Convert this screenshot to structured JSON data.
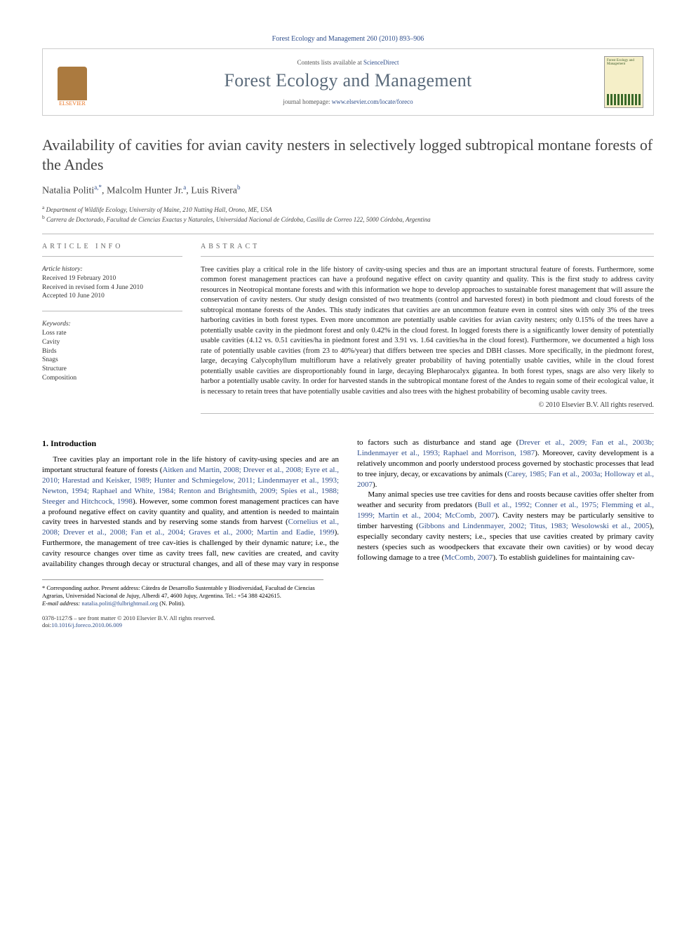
{
  "header": {
    "citation": "Forest Ecology and Management 260 (2010) 893–906"
  },
  "banner": {
    "publisher": "ELSEVIER",
    "contents_prefix": "Contents lists available at ",
    "contents_link": "ScienceDirect",
    "journal": "Forest Ecology and Management",
    "homepage_prefix": "journal homepage: ",
    "homepage_url": "www.elsevier.com/locate/foreco",
    "cover_title": "Forest Ecology and Management"
  },
  "title": "Availability of cavities for avian cavity nesters in selectively logged subtropical montane forests of the Andes",
  "authors": {
    "list": "Natalia Politi",
    "a1_sup": "a,",
    "star": "*",
    "a2": ", Malcolm Hunter Jr.",
    "a2_sup": "a",
    "a3": ", Luis Rivera",
    "a3_sup": "b"
  },
  "affiliations": {
    "a": "Department of Wildlife Ecology, University of Maine, 210 Nutting Hall, Orono, ME, USA",
    "b": "Carrera de Doctorado, Facultad de Ciencias Exactas y Naturales, Universidad Nacional de Córdoba, Casilla de Correo 122, 5000 Córdoba, Argentina"
  },
  "info": {
    "label": "ARTICLE INFO",
    "history_head": "Article history:",
    "h1": "Received 19 February 2010",
    "h2": "Received in revised form 4 June 2010",
    "h3": "Accepted 10 June 2010",
    "keywords_head": "Keywords:",
    "k1": "Loss rate",
    "k2": "Cavity",
    "k3": "Birds",
    "k4": "Snags",
    "k5": "Structure",
    "k6": "Composition"
  },
  "abstract": {
    "label": "ABSTRACT",
    "text": "Tree cavities play a critical role in the life history of cavity-using species and thus are an important structural feature of forests. Furthermore, some common forest management practices can have a profound negative effect on cavity quantity and quality. This is the first study to address cavity resources in Neotropical montane forests and with this information we hope to develop approaches to sustainable forest management that will assure the conservation of cavity nesters. Our study design consisted of two treatments (control and harvested forest) in both piedmont and cloud forests of the subtropical montane forests of the Andes. This study indicates that cavities are an uncommon feature even in control sites with only 3% of the trees harboring cavities in both forest types. Even more uncommon are potentially usable cavities for avian cavity nesters; only 0.15% of the trees have a potentially usable cavity in the piedmont forest and only 0.42% in the cloud forest. In logged forests there is a significantly lower density of potentially usable cavities (4.12 vs. 0.51 cavities/ha in piedmont forest and 3.91 vs. 1.64 cavities/ha in the cloud forest). Furthermore, we documented a high loss rate of potentially usable cavities (from 23 to 40%/year) that differs between tree species and DBH classes. More specifically, in the piedmont forest, large, decaying Calycophyllum multiflorum have a relatively greater probability of having potentially usable cavities, while in the cloud forest potentially usable cavities are disproportionably found in large, decaying Blepharocalyx gigantea. In both forest types, snags are also very likely to harbor a potentially usable cavity. In order for harvested stands in the subtropical montane forest of the Andes to regain some of their ecological value, it is necessary to retain trees that have potentially usable cavities and also trees with the highest probability of becoming usable cavity trees.",
    "copyright": "© 2010 Elsevier B.V. All rights reserved."
  },
  "body": {
    "h1": "1. Introduction",
    "p1a": "Tree cavities play an important role in the life history of cavity-using species and are an important structural feature of forests (",
    "p1_refs1": "Aitken and Martin, 2008; Drever et al., 2008; Eyre et al., 2010; Harestad and Keisker, 1989; Hunter and Schmiegelow, 2011; Lindenmayer et al., 1993; Newton, 1994; Raphael and White, 1984; Renton and Brightsmith, 2009; Spies et al., 1988; Steeger and Hitchcock, 1998",
    "p1b": "). However, some common forest management practices can have a profound negative effect on cavity quantity and quality, and attention is needed to maintain cavity trees in harvested stands and by reserving some stands from harvest (",
    "p1_refs2": "Cornelius et al., 2008; Drever et al., 2008; Fan et al., 2004; Graves et al., 2000; Martin and Eadie, 1999",
    "p1c": "). Furthermore, the management of tree cav-",
    "p2a": "ities is challenged by their dynamic nature; i.e., the cavity resource changes over time as cavity trees fall, new cavities are created, and cavity availability changes through decay or structural changes, and all of these may vary in response to factors such as disturbance and stand age (",
    "p2_refs1": "Drever et al., 2009; Fan et al., 2003b; Lindenmayer et al., 1993; Raphael and Morrison, 1987",
    "p2b": "). Moreover, cavity development is a relatively uncommon and poorly understood process governed by stochastic processes that lead to tree injury, decay, or excavations by animals (",
    "p2_refs2": "Carey, 1985; Fan et al., 2003a; Holloway et al., 2007",
    "p2c": ").",
    "p3a": "Many animal species use tree cavities for dens and roosts because cavities offer shelter from weather and security from predators (",
    "p3_refs1": "Bull et al., 1992; Conner et al., 1975; Flemming et al., 1999; Martin et al., 2004; McComb, 2007",
    "p3b": "). Cavity nesters may be particularly sensitive to timber harvesting (",
    "p3_refs2": "Gibbons and Lindenmayer, 2002; Titus, 1983; Wesolowski et al., 2005",
    "p3c": "), especially secondary cavity nesters; i.e., species that use cavities created by primary cavity nesters (species such as woodpeckers that excavate their own cavities) or by wood decay following damage to a tree (",
    "p3_refs3": "McComb, 2007",
    "p3d": "). To establish guidelines for maintaining cav-"
  },
  "footnotes": {
    "corr_label": "* Corresponding author. Present address: Cátedra de Desarrollo Sustentable y Biodiversidad, Facultad de Ciencias Agrarias, Universidad Nacional de Jujuy, Alberdi 47, 4600 Jujuy, Argentina. Tel.: +54 388 4242615.",
    "email_label": "E-mail address: ",
    "email": "natalia.politi@fulbrightmail.org",
    "email_who": " (N. Politi)."
  },
  "footer": {
    "line1": "0378-1127/$ – see front matter © 2010 Elsevier B.V. All rights reserved.",
    "doi_prefix": "doi:",
    "doi": "10.1016/j.foreco.2010.06.009"
  },
  "colors": {
    "link": "#304f8c",
    "text": "#222222",
    "muted": "#666666",
    "elsevier": "#e9711c"
  }
}
